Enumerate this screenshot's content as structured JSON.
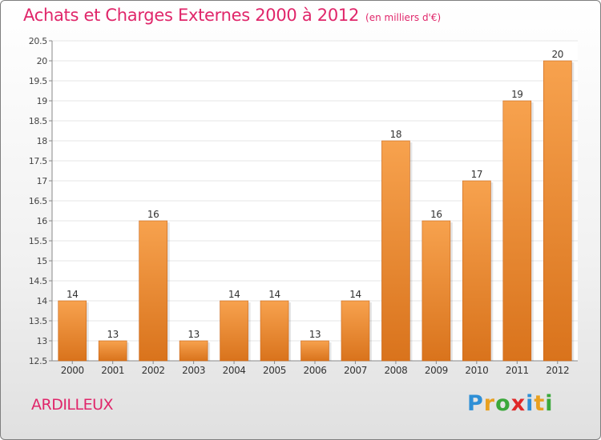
{
  "header": {
    "title": "Achats et Charges Externes 2000 à 2012",
    "subtitle": "(en milliers d'€)"
  },
  "commune": "ARDILLEUX",
  "logo": {
    "text": "Proxiti",
    "letters": [
      {
        "char": "P",
        "color": "#2e8fd6"
      },
      {
        "char": "r",
        "color": "#e8a020"
      },
      {
        "char": "o",
        "color": "#3aa83a"
      },
      {
        "char": "x",
        "color": "#e02828"
      },
      {
        "char": "i",
        "color": "#2e8fd6"
      },
      {
        "char": "t",
        "color": "#e8a020"
      },
      {
        "char": "i",
        "color": "#3aa83a"
      }
    ]
  },
  "colors": {
    "bar_light": "#f7a24e",
    "bar_dark": "#d9731c",
    "accent": "#e0266a",
    "grid": "#e6e6e6"
  },
  "chart_data": {
    "type": "bar",
    "categories": [
      "2000",
      "2001",
      "2002",
      "2003",
      "2004",
      "2005",
      "2006",
      "2007",
      "2008",
      "2009",
      "2010",
      "2011",
      "2012"
    ],
    "values": [
      14,
      13,
      16,
      13,
      14,
      14,
      13,
      14,
      18,
      16,
      17,
      19,
      20
    ],
    "value_labels": [
      "14",
      "13",
      "16",
      "13",
      "14",
      "14",
      "13",
      "14",
      "18",
      "16",
      "17",
      "19",
      "20"
    ],
    "ylim": [
      12.5,
      20.5
    ],
    "yticks": [
      "12.5",
      "13",
      "13.5",
      "14",
      "14.5",
      "15",
      "15.5",
      "16",
      "16.5",
      "17",
      "17.5",
      "18",
      "18.5",
      "19",
      "19.5",
      "20",
      "20.5"
    ],
    "grid": true,
    "xlabel": "",
    "ylabel": ""
  }
}
